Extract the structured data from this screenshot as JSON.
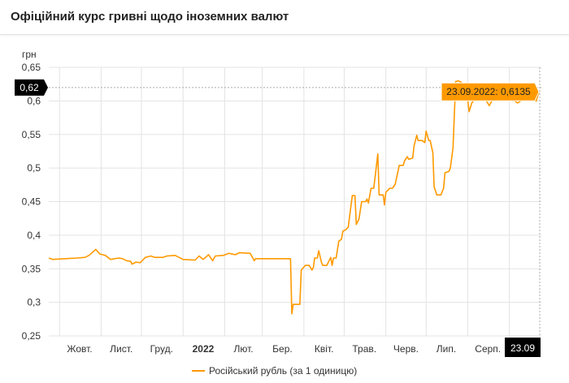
{
  "header": {
    "title": "Офіційний курс гривні щодо іноземних валют"
  },
  "chart_data": {
    "type": "line",
    "ylabel": "грн",
    "ylim": [
      0.25,
      0.65
    ],
    "yticks": [
      "0,25",
      "0,3",
      "0,35",
      "0,4",
      "0,45",
      "0,5",
      "0,55",
      "0,6",
      "0,65"
    ],
    "ytick_values": [
      0.25,
      0.3,
      0.35,
      0.4,
      0.45,
      0.5,
      0.55,
      0.6,
      0.65
    ],
    "xlim": [
      "2021-09-23",
      "2022-09-23"
    ],
    "xticks": [
      {
        "label": "Жовт.",
        "date": "2021-10-16",
        "bold": false
      },
      {
        "label": "Лист.",
        "date": "2021-11-16",
        "bold": false
      },
      {
        "label": "Груд.",
        "date": "2021-12-16",
        "bold": false
      },
      {
        "label": "2022",
        "date": "2022-01-16",
        "bold": true
      },
      {
        "label": "Лют.",
        "date": "2022-02-15",
        "bold": false
      },
      {
        "label": "Бер.",
        "date": "2022-03-16",
        "bold": false
      },
      {
        "label": "Квіт.",
        "date": "2022-04-16",
        "bold": false
      },
      {
        "label": "Трав.",
        "date": "2022-05-16",
        "bold": false
      },
      {
        "label": "Черв.",
        "date": "2022-06-16",
        "bold": false
      },
      {
        "label": "Лип.",
        "date": "2022-07-16",
        "bold": false
      },
      {
        "label": "Серп.",
        "date": "2022-08-16",
        "bold": false
      }
    ],
    "gridlines_x": [
      "2021-10-01",
      "2021-11-01",
      "2021-12-01",
      "2022-01-01",
      "2022-02-01",
      "2022-03-01",
      "2022-04-01",
      "2022-05-01",
      "2022-06-01",
      "2022-07-01",
      "2022-08-01",
      "2022-09-01"
    ],
    "grid": true,
    "crosshair": {
      "y_label": "0,62",
      "y_value": 0.62,
      "x_label": "23.09",
      "tooltip": "23.09.2022: 0,6135"
    },
    "legend_position": "bottom",
    "color": "#ff9900",
    "series": [
      {
        "name": "Російський рубль (за 1 одиницю)",
        "points": [
          [
            "2021-09-23",
            0.366
          ],
          [
            "2021-09-26",
            0.364
          ],
          [
            "2021-10-05",
            0.365
          ],
          [
            "2021-10-14",
            0.366
          ],
          [
            "2021-10-20",
            0.367
          ],
          [
            "2021-10-23",
            0.37
          ],
          [
            "2021-10-28",
            0.379
          ],
          [
            "2021-10-31",
            0.372
          ],
          [
            "2021-11-04",
            0.37
          ],
          [
            "2021-11-08",
            0.364
          ],
          [
            "2021-11-14",
            0.366
          ],
          [
            "2021-11-17",
            0.365
          ],
          [
            "2021-11-20",
            0.362
          ],
          [
            "2021-11-23",
            0.361
          ],
          [
            "2021-11-24",
            0.357
          ],
          [
            "2021-11-27",
            0.36
          ],
          [
            "2021-11-30",
            0.359
          ],
          [
            "2021-12-04",
            0.367
          ],
          [
            "2021-12-08",
            0.369
          ],
          [
            "2021-12-11",
            0.367
          ],
          [
            "2021-12-17",
            0.367
          ],
          [
            "2021-12-20",
            0.369
          ],
          [
            "2021-12-26",
            0.37
          ],
          [
            "2022-01-01",
            0.364
          ],
          [
            "2022-01-10",
            0.363
          ],
          [
            "2022-01-13",
            0.369
          ],
          [
            "2022-01-16",
            0.364
          ],
          [
            "2022-01-20",
            0.371
          ],
          [
            "2022-01-23",
            0.362
          ],
          [
            "2022-01-25",
            0.369
          ],
          [
            "2022-01-31",
            0.37
          ],
          [
            "2022-02-04",
            0.373
          ],
          [
            "2022-02-09",
            0.371
          ],
          [
            "2022-02-12",
            0.374
          ],
          [
            "2022-02-20",
            0.373
          ],
          [
            "2022-02-23",
            0.362
          ],
          [
            "2022-02-24",
            0.365
          ],
          [
            "2022-03-22",
            0.365
          ],
          [
            "2022-03-23",
            0.283
          ],
          [
            "2022-03-24",
            0.297
          ],
          [
            "2022-03-29",
            0.297
          ],
          [
            "2022-03-30",
            0.348
          ],
          [
            "2022-04-02",
            0.355
          ],
          [
            "2022-04-05",
            0.355
          ],
          [
            "2022-04-07",
            0.348
          ],
          [
            "2022-04-08",
            0.352
          ],
          [
            "2022-04-09",
            0.366
          ],
          [
            "2022-04-11",
            0.366
          ],
          [
            "2022-04-12",
            0.377
          ],
          [
            "2022-04-14",
            0.36
          ],
          [
            "2022-04-15",
            0.355
          ],
          [
            "2022-04-18",
            0.355
          ],
          [
            "2022-04-21",
            0.367
          ],
          [
            "2022-04-22",
            0.355
          ],
          [
            "2022-04-23",
            0.366
          ],
          [
            "2022-04-25",
            0.366
          ],
          [
            "2022-04-27",
            0.391
          ],
          [
            "2022-04-29",
            0.394
          ],
          [
            "2022-04-30",
            0.406
          ],
          [
            "2022-05-02",
            0.408
          ],
          [
            "2022-05-04",
            0.412
          ],
          [
            "2022-05-07",
            0.459
          ],
          [
            "2022-05-09",
            0.459
          ],
          [
            "2022-05-10",
            0.416
          ],
          [
            "2022-05-12",
            0.424
          ],
          [
            "2022-05-14",
            0.45
          ],
          [
            "2022-05-17",
            0.45
          ],
          [
            "2022-05-18",
            0.454
          ],
          [
            "2022-05-19",
            0.448
          ],
          [
            "2022-05-21",
            0.47
          ],
          [
            "2022-05-23",
            0.47
          ],
          [
            "2022-05-26",
            0.521
          ],
          [
            "2022-05-27",
            0.46
          ],
          [
            "2022-05-30",
            0.46
          ],
          [
            "2022-05-31",
            0.445
          ],
          [
            "2022-06-01",
            0.464
          ],
          [
            "2022-06-04",
            0.47
          ],
          [
            "2022-06-06",
            0.47
          ],
          [
            "2022-06-08",
            0.476
          ],
          [
            "2022-06-11",
            0.504
          ],
          [
            "2022-06-14",
            0.504
          ],
          [
            "2022-06-15",
            0.511
          ],
          [
            "2022-06-17",
            0.517
          ],
          [
            "2022-06-18",
            0.513
          ],
          [
            "2022-06-21",
            0.515
          ],
          [
            "2022-06-22",
            0.533
          ],
          [
            "2022-06-24",
            0.549
          ],
          [
            "2022-06-25",
            0.541
          ],
          [
            "2022-06-28",
            0.541
          ],
          [
            "2022-06-30",
            0.538
          ],
          [
            "2022-07-01",
            0.555
          ],
          [
            "2022-07-03",
            0.541
          ],
          [
            "2022-07-04",
            0.541
          ],
          [
            "2022-07-06",
            0.523
          ],
          [
            "2022-07-07",
            0.472
          ],
          [
            "2022-07-09",
            0.46
          ],
          [
            "2022-07-12",
            0.46
          ],
          [
            "2022-07-14",
            0.47
          ],
          [
            "2022-07-15",
            0.493
          ],
          [
            "2022-07-18",
            0.495
          ],
          [
            "2022-07-19",
            0.5
          ],
          [
            "2022-07-21",
            0.53
          ],
          [
            "2022-07-23",
            0.629
          ],
          [
            "2022-07-25",
            0.63
          ],
          [
            "2022-07-27",
            0.628
          ],
          [
            "2022-08-01",
            0.602
          ],
          [
            "2022-08-02",
            0.584
          ],
          [
            "2022-08-04",
            0.597
          ],
          [
            "2022-08-06",
            0.602
          ],
          [
            "2022-08-10",
            0.604
          ],
          [
            "2022-08-14",
            0.603
          ],
          [
            "2022-08-17",
            0.593
          ],
          [
            "2022-08-20",
            0.604
          ],
          [
            "2022-08-30",
            0.602
          ],
          [
            "2022-09-03",
            0.603
          ],
          [
            "2022-09-07",
            0.597
          ],
          [
            "2022-09-11",
            0.602
          ],
          [
            "2022-09-17",
            0.603
          ],
          [
            "2022-09-21",
            0.6
          ],
          [
            "2022-09-23",
            0.6135
          ]
        ]
      }
    ]
  }
}
